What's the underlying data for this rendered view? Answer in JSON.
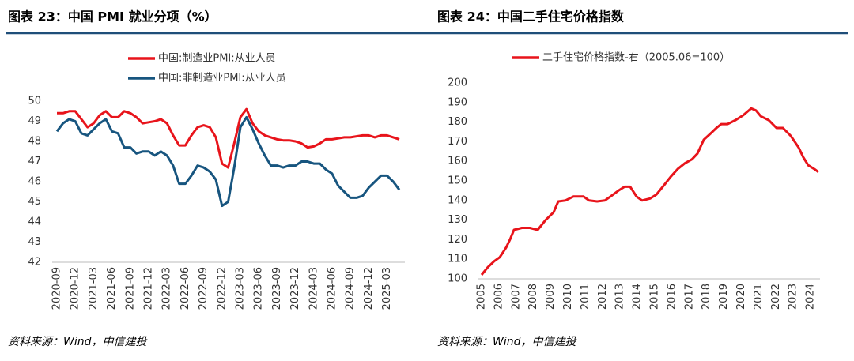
{
  "chart_data": [
    {
      "type": "line",
      "title": "图表 23：中国 PMI 就业分项（%）",
      "source": "资料来源：Wind，中信建投",
      "categories": [
        "2020-09",
        null,
        null,
        "2020-12",
        null,
        null,
        "2021-03",
        null,
        null,
        "2021-06",
        null,
        null,
        "2021-09",
        null,
        null,
        "2021-12",
        null,
        null,
        "2022-03",
        null,
        null,
        "2022-06",
        null,
        null,
        "2022-09",
        null,
        null,
        "2022-12",
        null,
        null,
        "2023-03",
        null,
        null,
        "2023-06",
        null,
        null,
        "2023-09",
        null,
        null,
        "2023-12",
        null,
        null,
        "2024-03",
        null,
        null,
        "2024-06",
        null,
        null,
        "2024-09",
        null,
        null,
        "2024-12",
        null,
        null,
        "2025-03",
        null,
        null
      ],
      "series": [
        {
          "name": "中国:制造业PMI:从业人员",
          "color": "#e8141b",
          "values": [
            49.4,
            49.4,
            49.5,
            49.5,
            49.1,
            48.7,
            48.9,
            49.3,
            49.5,
            49.2,
            49.2,
            49.5,
            49.4,
            49.2,
            48.9,
            48.95,
            49.0,
            49.1,
            48.9,
            48.3,
            47.8,
            47.8,
            48.3,
            48.7,
            48.8,
            48.7,
            48.2,
            46.9,
            46.7,
            47.9,
            49.2,
            49.6,
            48.9,
            48.5,
            48.3,
            48.2,
            48.1,
            48.05,
            48.05,
            48.0,
            47.9,
            47.7,
            47.75,
            47.9,
            48.1,
            48.1,
            48.15,
            48.2,
            48.2,
            48.25,
            48.3,
            48.3,
            48.2,
            48.3,
            48.3,
            48.2,
            48.1
          ]
        },
        {
          "name": "中国:非制造业PMI:从业人员",
          "color": "#17557f",
          "values": [
            48.5,
            48.9,
            49.1,
            49.0,
            48.4,
            48.3,
            48.6,
            48.9,
            49.1,
            48.5,
            48.4,
            47.7,
            47.7,
            47.4,
            47.5,
            47.5,
            47.3,
            47.5,
            47.3,
            46.8,
            45.9,
            45.9,
            46.3,
            46.8,
            46.7,
            46.5,
            46.1,
            44.8,
            45.0,
            46.7,
            48.7,
            49.2,
            48.6,
            47.9,
            47.3,
            46.8,
            46.8,
            46.7,
            46.8,
            46.8,
            47.0,
            47.0,
            46.9,
            46.9,
            46.6,
            46.4,
            45.8,
            45.5,
            45.2,
            45.2,
            45.3,
            45.7,
            46.0,
            46.3,
            46.3,
            46.0,
            45.6
          ]
        }
      ],
      "ylim": [
        42,
        50
      ],
      "yticks": [
        42,
        43,
        44,
        45,
        46,
        47,
        48,
        49,
        50
      ]
    },
    {
      "type": "line",
      "title": "图表 24：中国二手住宅价格指数",
      "source": "资料来源：Wind，中信建投",
      "x": [
        2005.0,
        2005.37,
        2005.73,
        2006.05,
        2006.42,
        2006.64,
        2006.87,
        2007.33,
        2007.79,
        2008.24,
        2008.7,
        2009.16,
        2009.43,
        2009.84,
        2010.3,
        2010.89,
        2011.21,
        2011.67,
        2012.12,
        2012.44,
        2012.9,
        2013.26,
        2013.58,
        2013.95,
        2014.27,
        2014.73,
        2015.09,
        2015.55,
        2015.91,
        2016.32,
        2016.74,
        2017.15,
        2017.47,
        2017.83,
        2018.2,
        2018.56,
        2018.84,
        2019.2,
        2019.66,
        2020.11,
        2020.57,
        2020.84,
        2021.12,
        2021.58,
        2022.03,
        2022.4,
        2022.85,
        2023.31,
        2023.58,
        2023.86,
        2024.22,
        2024.45
      ],
      "series": [
        {
          "name": "二手住宅价格指数-右（2005.06=100）",
          "color": "#e8141b",
          "values": [
            102,
            106,
            109,
            111,
            116,
            120,
            125,
            126,
            126,
            125,
            130,
            134,
            139.5,
            140,
            142,
            142,
            140,
            139.5,
            140,
            142,
            145,
            147,
            147,
            142,
            140,
            141,
            143,
            148,
            152,
            156,
            159,
            161,
            164,
            171,
            174,
            177,
            179,
            179,
            181,
            183.5,
            187,
            186,
            183,
            181,
            177,
            177,
            173,
            167,
            162,
            158,
            156,
            154.5
          ]
        }
      ],
      "xlim": [
        2005,
        2024.45
      ],
      "xticks": [
        2005,
        2006,
        2007,
        2008,
        2009,
        2010,
        2011,
        2012,
        2013,
        2014,
        2015,
        2016,
        2017,
        2018,
        2019,
        2020,
        2021,
        2022,
        2023,
        2024
      ],
      "ylim": [
        100,
        200
      ],
      "yticks": [
        100,
        110,
        120,
        130,
        140,
        150,
        160,
        170,
        180,
        190,
        200
      ]
    }
  ]
}
